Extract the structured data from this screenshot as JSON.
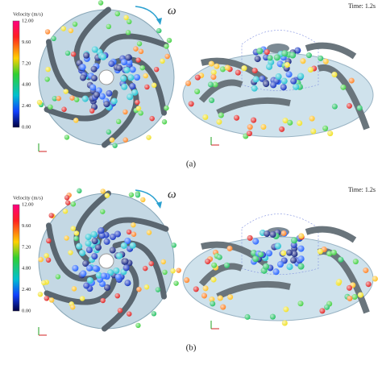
{
  "panels": [
    {
      "legend_title": "Velocity (m/s)",
      "legend_ticks": [
        "12.00",
        "9.60",
        "7.20",
        "4.80",
        "2.40",
        "0.00"
      ],
      "omega": "ω",
      "time": "Time: 1.2s",
      "label": "(a)"
    },
    {
      "legend_title": "Velocity (m/s)",
      "legend_ticks": [
        "12.00",
        "9.60",
        "7.20",
        "4.80",
        "2.40",
        "0.00"
      ],
      "omega": "ω",
      "time": "Time: 1.2s",
      "label": "(b)"
    }
  ]
}
